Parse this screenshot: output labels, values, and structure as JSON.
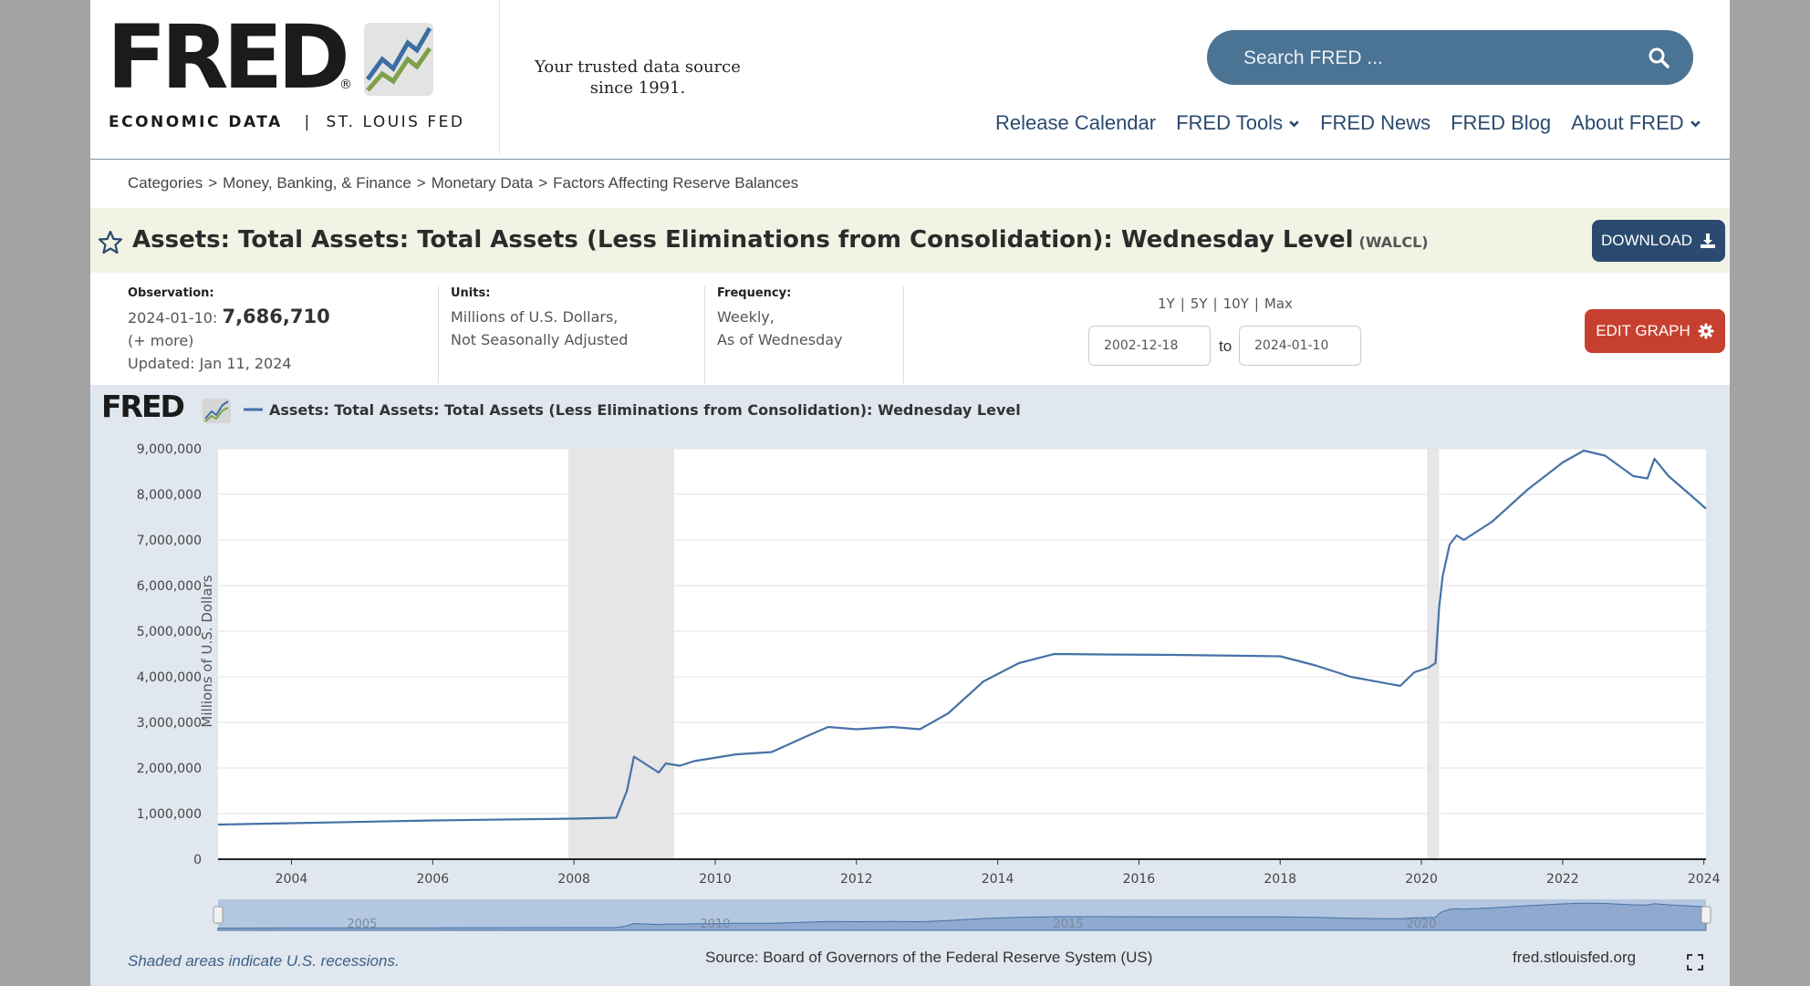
{
  "header": {
    "logo_text": "FRED",
    "logo_sub_bold": "ECONOMIC DATA",
    "logo_sub_sep": "|",
    "logo_sub_rest": "ST. LOUIS FED",
    "tagline_line1": "Your trusted data source",
    "tagline_line2": "since 1991.",
    "search_placeholder": "Search FRED ...",
    "nav": [
      {
        "label": "Release Calendar",
        "dropdown": false
      },
      {
        "label": "FRED Tools",
        "dropdown": true
      },
      {
        "label": "FRED News",
        "dropdown": false
      },
      {
        "label": "FRED Blog",
        "dropdown": false
      },
      {
        "label": "About FRED",
        "dropdown": true
      }
    ]
  },
  "breadcrumb": [
    "Categories",
    "Money, Banking, & Finance",
    "Monetary Data",
    "Factors Affecting Reserve Balances"
  ],
  "breadcrumb_sep": ">",
  "series": {
    "title": "Assets: Total Assets: Total Assets (Less Eliminations from Consolidation): Wednesday Level",
    "id": "(WALCL)",
    "download_label": "DOWNLOAD"
  },
  "meta": {
    "observation_label": "Observation:",
    "observation_date": "2024-01-10:",
    "observation_value": "7,686,710",
    "more": "(+ more)",
    "updated": "Updated: Jan 11, 2024",
    "units_label": "Units:",
    "units_line1": "Millions of U.S. Dollars,",
    "units_line2": "Not Seasonally Adjusted",
    "frequency_label": "Frequency:",
    "frequency_line1": "Weekly,",
    "frequency_line2": "As of Wednesday",
    "ranges": [
      "1Y",
      "5Y",
      "10Y",
      "Max"
    ],
    "range_sep": "|",
    "start_date": "2002-12-18",
    "to_label": "to",
    "end_date": "2024-01-10",
    "edit_graph_label": "EDIT GRAPH"
  },
  "chart_data": {
    "type": "line",
    "legend_logo": "FRED",
    "series": [
      {
        "name": "Assets: Total Assets: Total Assets (Less Eliminations from Consolidation): Wednesday Level",
        "color": "#4572a7",
        "x": [
          2002.96,
          2004,
          2006,
          2008,
          2008.6,
          2008.75,
          2008.85,
          2008.95,
          2009.1,
          2009.2,
          2009.3,
          2009.5,
          2009.7,
          2009.9,
          2010.3,
          2010.8,
          2011.3,
          2011.6,
          2012,
          2012.5,
          2012.9,
          2013.3,
          2013.8,
          2014.3,
          2014.8,
          2015.5,
          2016.5,
          2017.5,
          2018,
          2018.5,
          2019,
          2019.7,
          2019.9,
          2020.1,
          2020.2,
          2020.25,
          2020.3,
          2020.4,
          2020.5,
          2020.6,
          2021,
          2021.5,
          2022,
          2022.3,
          2022.6,
          2023,
          2023.2,
          2023.3,
          2023.5,
          2023.8,
          2024.03
        ],
        "values": [
          760000,
          790000,
          850000,
          890000,
          910000,
          1500000,
          2250000,
          2150000,
          2000000,
          1900000,
          2100000,
          2050000,
          2150000,
          2200000,
          2300000,
          2350000,
          2700000,
          2900000,
          2850000,
          2900000,
          2850000,
          3200000,
          3900000,
          4300000,
          4500000,
          4490000,
          4480000,
          4460000,
          4450000,
          4250000,
          4000000,
          3800000,
          4100000,
          4200000,
          4300000,
          5500000,
          6200000,
          6900000,
          7100000,
          7000000,
          7400000,
          8100000,
          8700000,
          8960000,
          8850000,
          8400000,
          8350000,
          8780000,
          8400000,
          8000000,
          7686710
        ]
      }
    ],
    "ylabel": "Millions of U.S. Dollars",
    "ylim": [
      0,
      9000000
    ],
    "yticks": [
      "0",
      "1,000,000",
      "2,000,000",
      "3,000,000",
      "4,000,000",
      "5,000,000",
      "6,000,000",
      "7,000,000",
      "8,000,000",
      "9,000,000"
    ],
    "xlim": [
      2002.96,
      2024.03
    ],
    "xticks": [
      "2004",
      "2006",
      "2008",
      "2010",
      "2012",
      "2014",
      "2016",
      "2018",
      "2020",
      "2022",
      "2024"
    ],
    "recessions": [
      [
        2007.92,
        2009.42
      ],
      [
        2020.08,
        2020.25
      ]
    ],
    "navigator_labels": [
      "2005",
      "2010",
      "2015",
      "2020"
    ],
    "grid": true
  },
  "footer": {
    "shaded_note": "Shaded areas indicate U.S. recessions.",
    "source": "Source: Board of Governors of the Federal Reserve System (US)",
    "url": "fred.stlouisfed.org"
  }
}
